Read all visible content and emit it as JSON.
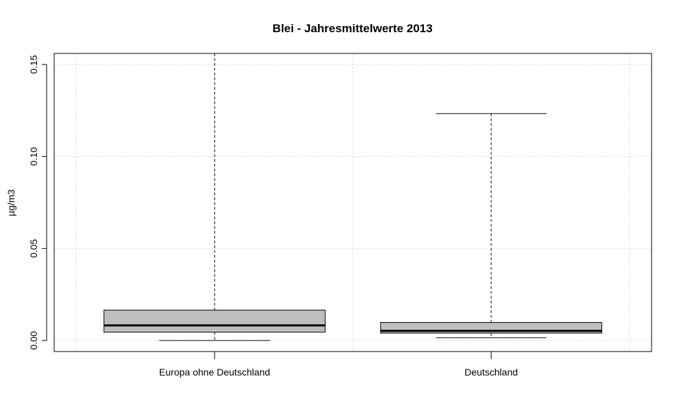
{
  "chart_data": {
    "type": "boxplot",
    "title": "Blei - Jahresmittelwerte 2013",
    "xlabel": "",
    "ylabel": "µg/m3",
    "ylim": [
      -0.006,
      0.156
    ],
    "yticks": [
      0.0,
      0.05,
      0.1,
      0.15
    ],
    "ytick_labels": [
      "0.00",
      "0.05",
      "0.10",
      "0.15"
    ],
    "grid": true,
    "categories": [
      "Europa ohne Deutschland",
      "Deutschland"
    ],
    "boxes": [
      {
        "category": "Europa ohne Deutschland",
        "whisker_low": 0.0,
        "q1": 0.0045,
        "median": 0.0082,
        "q3": 0.0165,
        "whisker_high": 0.157
      },
      {
        "category": "Deutschland",
        "whisker_low": 0.0015,
        "q1": 0.004,
        "median": 0.0052,
        "q3": 0.0098,
        "whisker_high": 0.1233
      }
    ],
    "colors": {
      "box_fill": "#bebebe",
      "grid": "#d3d3d3",
      "axis": "#000000"
    }
  }
}
